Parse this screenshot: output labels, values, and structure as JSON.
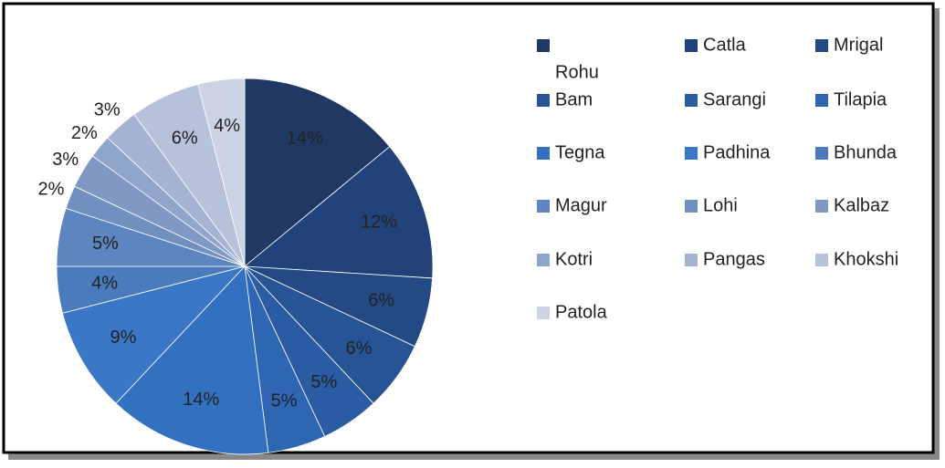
{
  "chart_data": {
    "type": "pie",
    "categories": [
      "Rohu",
      "Catla",
      "Mrigal",
      "Bam",
      "Sarangi",
      "Tilapia",
      "Tegna",
      "Padhina",
      "Bhunda",
      "Magur",
      "Lohi",
      "Kalbaz",
      "Kotri",
      "Pangas",
      "Khokshi",
      "Patola"
    ],
    "values": [
      14,
      12,
      6,
      6,
      5,
      5,
      14,
      9,
      4,
      5,
      2,
      3,
      2,
      3,
      6,
      4
    ],
    "value_labels": [
      "14%",
      "12%",
      "6%",
      "6%",
      "5%",
      "5%",
      "14%",
      "9%",
      "4%",
      "5%",
      "2%",
      "3%",
      "2%",
      "3%",
      "6%",
      "4%"
    ],
    "colors": [
      "#1f3864",
      "#22427a",
      "#244a86",
      "#275494",
      "#2a5ca3",
      "#2e66b3",
      "#3270c0",
      "#3a78c7",
      "#4a7bbd",
      "#5d86c0",
      "#7090c0",
      "#8099c4",
      "#90a5ca",
      "#a4b3d2",
      "#b6c2da",
      "#cbd3e5"
    ],
    "legend": "right"
  }
}
